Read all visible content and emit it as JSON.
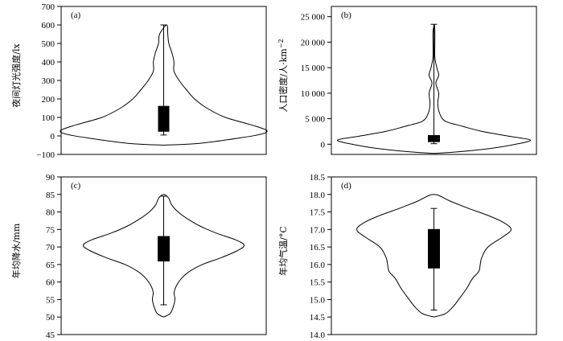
{
  "chart_data": [
    {
      "type": "violin",
      "panel_label": "(a)",
      "ylabel": "夜间灯光强度/lx",
      "ylim": [
        -100,
        700
      ],
      "yticks": [
        -100,
        0,
        100,
        200,
        300,
        400,
        500,
        600,
        700
      ],
      "ytick_labels": [
        "−100",
        "0",
        "100",
        "200",
        "300",
        "400",
        "500",
        "600",
        "700"
      ],
      "box": {
        "q1": 25,
        "q3": 160,
        "whisker_low": 5,
        "whisker_high": 600
      },
      "density": [
        [
          -50,
          0.0
        ],
        [
          -40,
          0.35
        ],
        [
          -10,
          0.75
        ],
        [
          10,
          0.95
        ],
        [
          30,
          1.0
        ],
        [
          60,
          0.85
        ],
        [
          100,
          0.6
        ],
        [
          150,
          0.42
        ],
        [
          200,
          0.3
        ],
        [
          250,
          0.22
        ],
        [
          300,
          0.15
        ],
        [
          350,
          0.1
        ],
        [
          400,
          0.1
        ],
        [
          450,
          0.08
        ],
        [
          500,
          0.05
        ],
        [
          550,
          0.04
        ],
        [
          600,
          0.03
        ]
      ]
    },
    {
      "type": "violin",
      "panel_label": "(b)",
      "ylabel": "人口密度/人·km",
      "ylabel_sup": "−2",
      "ylim": [
        -2000,
        27000
      ],
      "yticks": [
        0,
        5000,
        10000,
        15000,
        20000,
        25000
      ],
      "ytick_labels": [
        "0",
        "5 000",
        "10 000",
        "15 000",
        "20 000",
        "25 000"
      ],
      "box": {
        "q1": 500,
        "q3": 1700,
        "whisker_low": 100,
        "whisker_high": 23500
      },
      "density": [
        [
          -1800,
          0.0
        ],
        [
          -1500,
          0.25
        ],
        [
          -800,
          0.6
        ],
        [
          0,
          0.85
        ],
        [
          800,
          1.0
        ],
        [
          1500,
          0.8
        ],
        [
          2500,
          0.5
        ],
        [
          3500,
          0.3
        ],
        [
          4500,
          0.12
        ],
        [
          6000,
          0.06
        ],
        [
          8000,
          0.04
        ],
        [
          10000,
          0.05
        ],
        [
          12000,
          0.02
        ],
        [
          13500,
          0.05
        ],
        [
          15000,
          0.03
        ],
        [
          17000,
          0.01
        ],
        [
          20000,
          0.01
        ],
        [
          22000,
          0.01
        ],
        [
          23500,
          0.005
        ]
      ]
    },
    {
      "type": "violin",
      "panel_label": "(c)",
      "ylabel": "年均降水/mm",
      "ylim": [
        45,
        90
      ],
      "yticks": [
        45,
        50,
        55,
        60,
        65,
        70,
        75,
        80,
        85,
        90
      ],
      "ytick_labels": [
        "45",
        "50",
        "55",
        "60",
        "65",
        "70",
        "75",
        "80",
        "85",
        "90"
      ],
      "box": {
        "q1": 66,
        "q3": 73,
        "whisker_low": 53.5,
        "whisker_high": 84.5
      },
      "density": [
        [
          50,
          0.0
        ],
        [
          51,
          0.08
        ],
        [
          53,
          0.12
        ],
        [
          55,
          0.14
        ],
        [
          57,
          0.13
        ],
        [
          59,
          0.16
        ],
        [
          61,
          0.22
        ],
        [
          63,
          0.32
        ],
        [
          65,
          0.48
        ],
        [
          67,
          0.72
        ],
        [
          69,
          0.92
        ],
        [
          70.5,
          1.0
        ],
        [
          72,
          0.9
        ],
        [
          74,
          0.65
        ],
        [
          76,
          0.45
        ],
        [
          78,
          0.3
        ],
        [
          80,
          0.18
        ],
        [
          82,
          0.1
        ],
        [
          84,
          0.06
        ],
        [
          85,
          0.0
        ]
      ]
    },
    {
      "type": "violin",
      "panel_label": "(d)",
      "ylabel": "年均气温/°C",
      "ylim": [
        14.0,
        18.5
      ],
      "yticks": [
        14.0,
        14.5,
        15.0,
        15.5,
        16.0,
        16.5,
        17.0,
        17.5,
        18.0,
        18.5
      ],
      "ytick_labels": [
        "14.0",
        "14.5",
        "15.0",
        "15.5",
        "16.0",
        "16.5",
        "17.0",
        "17.5",
        "18.0",
        "18.5"
      ],
      "box": {
        "q1": 15.9,
        "q3": 17.0,
        "whisker_low": 14.7,
        "whisker_high": 17.6
      },
      "density": [
        [
          14.5,
          0.0
        ],
        [
          14.6,
          0.15
        ],
        [
          14.8,
          0.25
        ],
        [
          15.0,
          0.32
        ],
        [
          15.3,
          0.42
        ],
        [
          15.6,
          0.5
        ],
        [
          15.8,
          0.58
        ],
        [
          16.0,
          0.6
        ],
        [
          16.2,
          0.62
        ],
        [
          16.5,
          0.7
        ],
        [
          16.8,
          0.9
        ],
        [
          17.0,
          1.0
        ],
        [
          17.2,
          0.9
        ],
        [
          17.4,
          0.7
        ],
        [
          17.6,
          0.45
        ],
        [
          17.8,
          0.22
        ],
        [
          18.0,
          0.0
        ]
      ]
    }
  ]
}
